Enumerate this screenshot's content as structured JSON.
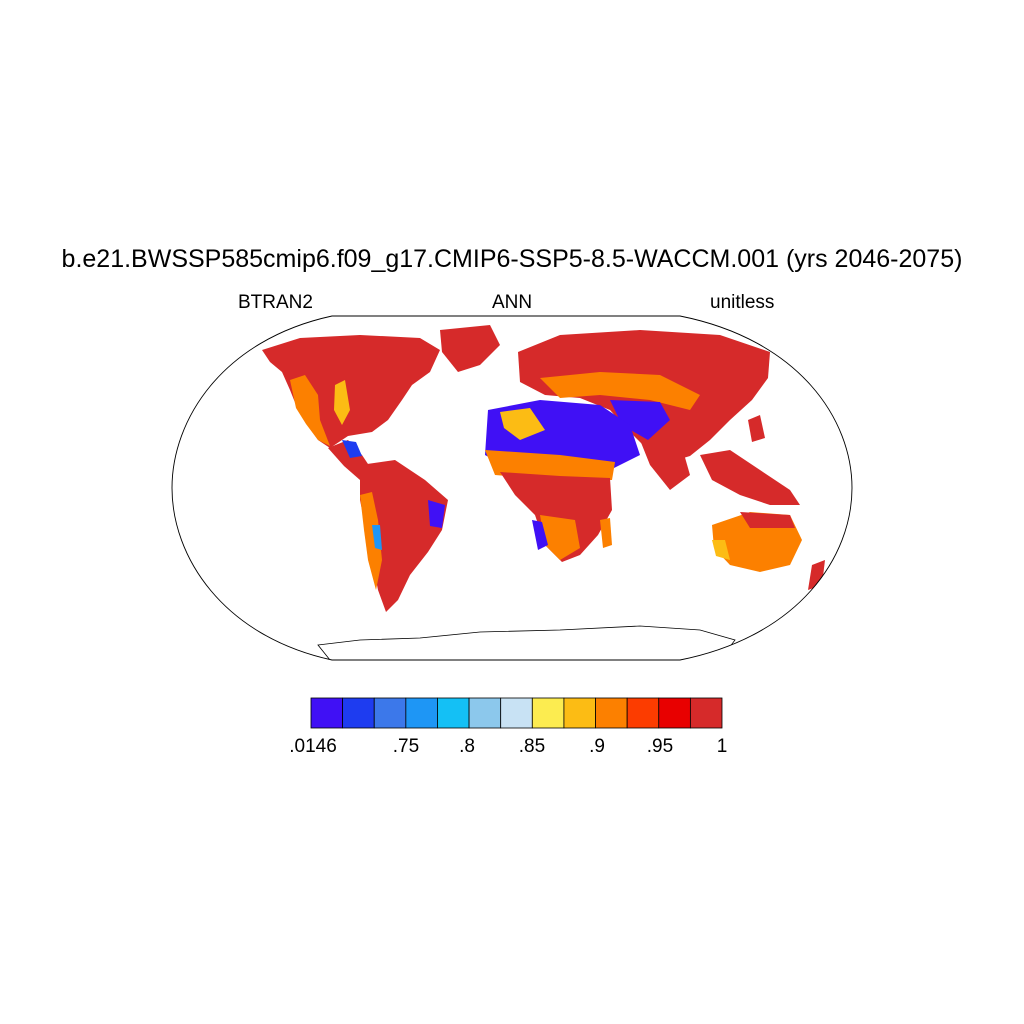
{
  "title": "b.e21.BWSSP585cmip6.f09_g17.CMIP6-SSP5-8.5-WACCM.001 (yrs 2046-2075)",
  "left_label": "BTRAN2",
  "center_label": "ANN",
  "right_label": "unitless",
  "colorbar": {
    "labels": [
      ".0146",
      ".75",
      ".8",
      ".85",
      ".9",
      ".95",
      "1"
    ],
    "colors": [
      "#4010f5",
      "#1e3cf0",
      "#3c78ea",
      "#1e96f5",
      "#14c0f5",
      "#8cc8ec",
      "#c8e2f4",
      "#fcec50",
      "#fcbc14",
      "#fc8000",
      "#fc3c00",
      "#e80000",
      "#d62a2a"
    ]
  },
  "colors": {
    "dominant_land": "#d62a2a",
    "dry_regions": "#4010f5",
    "transition": "#fc8000"
  }
}
